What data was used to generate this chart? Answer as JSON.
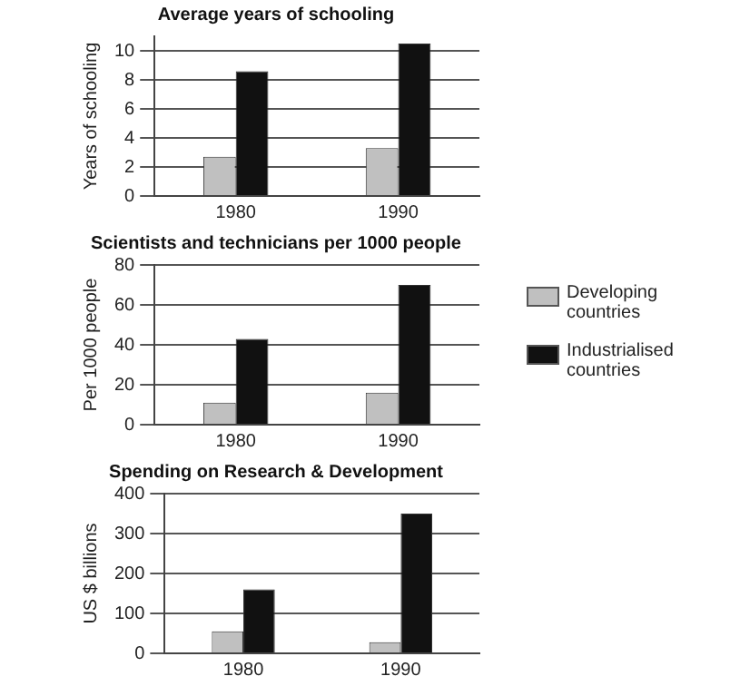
{
  "chart_data": [
    {
      "type": "bar",
      "title": "Average years of schooling",
      "ylabel": "Years of schooling",
      "categories": [
        "1980",
        "1990"
      ],
      "series": [
        {
          "color": "#c0c0c0",
          "values": [
            2.7,
            3.3
          ]
        },
        {
          "color": "#111111",
          "values": [
            8.6,
            10.5
          ]
        }
      ],
      "ylim": [
        0,
        11
      ],
      "yticks": [
        0,
        2,
        4,
        6,
        8,
        10
      ],
      "grid": "y"
    },
    {
      "type": "bar",
      "title": "Scientists and technicians per 1000 people",
      "ylabel": "Per 1000 people",
      "categories": [
        "1980",
        "1990"
      ],
      "series": [
        {
          "name": "Developing countries",
          "color": "#c0c0c0",
          "values": [
            11,
            16
          ]
        },
        {
          "name": "Industrialised countries",
          "color": "#111111",
          "values": [
            43,
            70
          ]
        }
      ],
      "ylim": [
        0,
        80
      ],
      "yticks": [
        0,
        20,
        40,
        60,
        80
      ],
      "grid": "y",
      "legend": "right"
    },
    {
      "type": "bar",
      "title": "Spending on Research & Development",
      "ylabel": "US $ billions",
      "categories": [
        "1980",
        "1990"
      ],
      "series": [
        {
          "color": "#c0c0c0",
          "values": [
            55,
            28
          ]
        },
        {
          "color": "#111111",
          "values": [
            160,
            350
          ]
        }
      ],
      "ylim": [
        0,
        400
      ],
      "yticks": [
        0,
        100,
        200,
        300,
        400
      ],
      "grid": "y"
    }
  ]
}
